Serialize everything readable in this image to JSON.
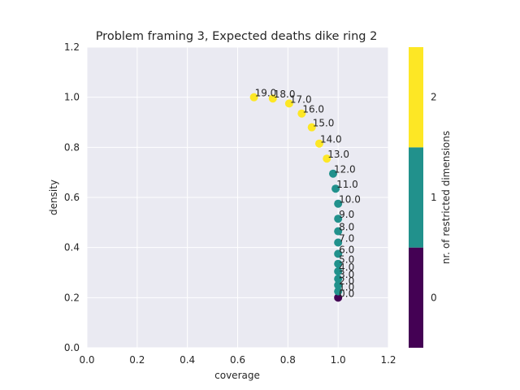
{
  "chart_data": {
    "type": "scatter",
    "title": "Problem framing 3, Expected deaths dike ring 2",
    "xlabel": "coverage",
    "ylabel": "density",
    "xlim": [
      0.0,
      1.2
    ],
    "ylim": [
      0.0,
      1.2
    ],
    "xticks": [
      "0.0",
      "0.2",
      "0.4",
      "0.6",
      "0.8",
      "1.0",
      "1.2"
    ],
    "yticks": [
      "0.0",
      "0.2",
      "0.4",
      "0.6",
      "0.8",
      "1.0",
      "1.2"
    ],
    "grid": true,
    "points": [
      {
        "label": "0.0",
        "x": 1.0,
        "y": 0.2,
        "dims": 0
      },
      {
        "label": "1.0",
        "x": 1.0,
        "y": 0.225,
        "dims": 1
      },
      {
        "label": "2.0",
        "x": 1.0,
        "y": 0.25,
        "dims": 1
      },
      {
        "label": "3.0",
        "x": 1.0,
        "y": 0.275,
        "dims": 1
      },
      {
        "label": "4.0",
        "x": 1.0,
        "y": 0.305,
        "dims": 1
      },
      {
        "label": "5.0",
        "x": 1.0,
        "y": 0.335,
        "dims": 1
      },
      {
        "label": "6.0",
        "x": 1.0,
        "y": 0.375,
        "dims": 1
      },
      {
        "label": "7.0",
        "x": 1.0,
        "y": 0.42,
        "dims": 1
      },
      {
        "label": "8.0",
        "x": 1.0,
        "y": 0.465,
        "dims": 1
      },
      {
        "label": "9.0",
        "x": 1.0,
        "y": 0.515,
        "dims": 1
      },
      {
        "label": "10.0",
        "x": 1.0,
        "y": 0.575,
        "dims": 1
      },
      {
        "label": "11.0",
        "x": 0.99,
        "y": 0.635,
        "dims": 1
      },
      {
        "label": "12.0",
        "x": 0.98,
        "y": 0.695,
        "dims": 1
      },
      {
        "label": "13.0",
        "x": 0.955,
        "y": 0.755,
        "dims": 2
      },
      {
        "label": "14.0",
        "x": 0.925,
        "y": 0.815,
        "dims": 2
      },
      {
        "label": "15.0",
        "x": 0.895,
        "y": 0.88,
        "dims": 2
      },
      {
        "label": "16.0",
        "x": 0.855,
        "y": 0.935,
        "dims": 2
      },
      {
        "label": "17.0",
        "x": 0.805,
        "y": 0.975,
        "dims": 2
      },
      {
        "label": "18.0",
        "x": 0.74,
        "y": 0.995,
        "dims": 2
      },
      {
        "label": "19.0",
        "x": 0.665,
        "y": 1.0,
        "dims": 2
      }
    ],
    "colorbar": {
      "label": "nr. of restricted dimensions",
      "ticks": [
        "0",
        "1",
        "2"
      ],
      "colors": [
        "#440154",
        "#21918c",
        "#fde725"
      ]
    }
  }
}
